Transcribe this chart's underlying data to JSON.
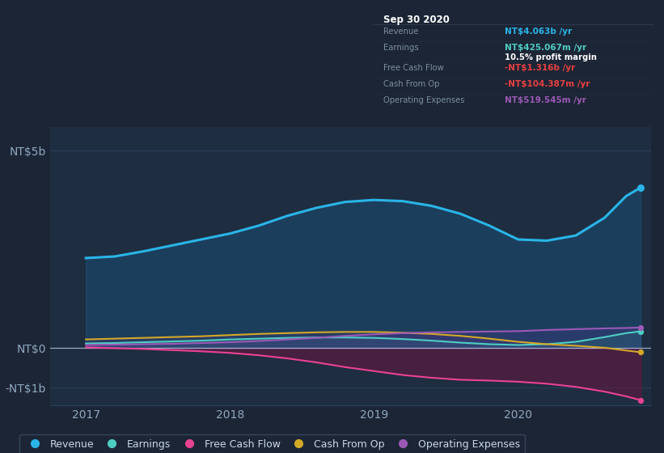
{
  "bg_color": "#1c2535",
  "chart_bg": "#1e2d40",
  "panel_bg": "#0d1117",
  "yticks_labels": [
    "NT$5b",
    "NT$0",
    "-NT$1b"
  ],
  "yticks_values": [
    5000000000.0,
    0,
    -1000000000.0
  ],
  "ylim": [
    -1450000000.0,
    5600000000.0
  ],
  "xlim": [
    2016.75,
    2020.92
  ],
  "xticks": [
    2017,
    2018,
    2019,
    2020
  ],
  "legend": [
    {
      "label": "Revenue",
      "color": "#29b5e8"
    },
    {
      "label": "Earnings",
      "color": "#4ecdc4"
    },
    {
      "label": "Free Cash Flow",
      "color": "#e84393"
    },
    {
      "label": "Cash From Op",
      "color": "#d4a827"
    },
    {
      "label": "Operating Expenses",
      "color": "#9b59b6"
    }
  ],
  "series": {
    "x": [
      2017.0,
      2017.2,
      2017.4,
      2017.6,
      2017.8,
      2018.0,
      2018.2,
      2018.4,
      2018.6,
      2018.8,
      2019.0,
      2019.2,
      2019.4,
      2019.6,
      2019.8,
      2020.0,
      2020.2,
      2020.4,
      2020.6,
      2020.75,
      2020.85
    ],
    "revenue": [
      2280000000.0,
      2320000000.0,
      2450000000.0,
      2600000000.0,
      2750000000.0,
      2900000000.0,
      3100000000.0,
      3350000000.0,
      3550000000.0,
      3700000000.0,
      3750000000.0,
      3720000000.0,
      3600000000.0,
      3400000000.0,
      3100000000.0,
      2750000000.0,
      2720000000.0,
      2850000000.0,
      3300000000.0,
      3850000000.0,
      4063000000.0
    ],
    "earnings": [
      120000000.0,
      130000000.0,
      150000000.0,
      170000000.0,
      190000000.0,
      220000000.0,
      240000000.0,
      260000000.0,
      270000000.0,
      270000000.0,
      260000000.0,
      230000000.0,
      190000000.0,
      140000000.0,
      100000000.0,
      80000000.0,
      100000000.0,
      160000000.0,
      280000000.0,
      380000000.0,
      425000000.0
    ],
    "free_cash_flow": [
      20000000.0,
      0.0,
      -20000000.0,
      -50000000.0,
      -80000000.0,
      -120000000.0,
      -180000000.0,
      -260000000.0,
      -360000000.0,
      -480000000.0,
      -580000000.0,
      -680000000.0,
      -750000000.0,
      -800000000.0,
      -820000000.0,
      -850000000.0,
      -900000000.0,
      -980000000.0,
      -1100000000.0,
      -1220000000.0,
      -1316000000.0
    ],
    "cash_from_op": [
      220000000.0,
      240000000.0,
      260000000.0,
      280000000.0,
      300000000.0,
      330000000.0,
      360000000.0,
      380000000.0,
      400000000.0,
      410000000.0,
      410000000.0,
      390000000.0,
      360000000.0,
      310000000.0,
      240000000.0,
      160000000.0,
      100000000.0,
      60000000.0,
      10000000.0,
      -60000000.0,
      -104000000.0
    ],
    "operating_expenses": [
      80000000.0,
      90000000.0,
      100000000.0,
      110000000.0,
      130000000.0,
      150000000.0,
      180000000.0,
      220000000.0,
      260000000.0,
      310000000.0,
      350000000.0,
      380000000.0,
      400000000.0,
      410000000.0,
      420000000.0,
      430000000.0,
      460000000.0,
      480000000.0,
      500000000.0,
      510000000.0,
      520000000.0
    ]
  }
}
